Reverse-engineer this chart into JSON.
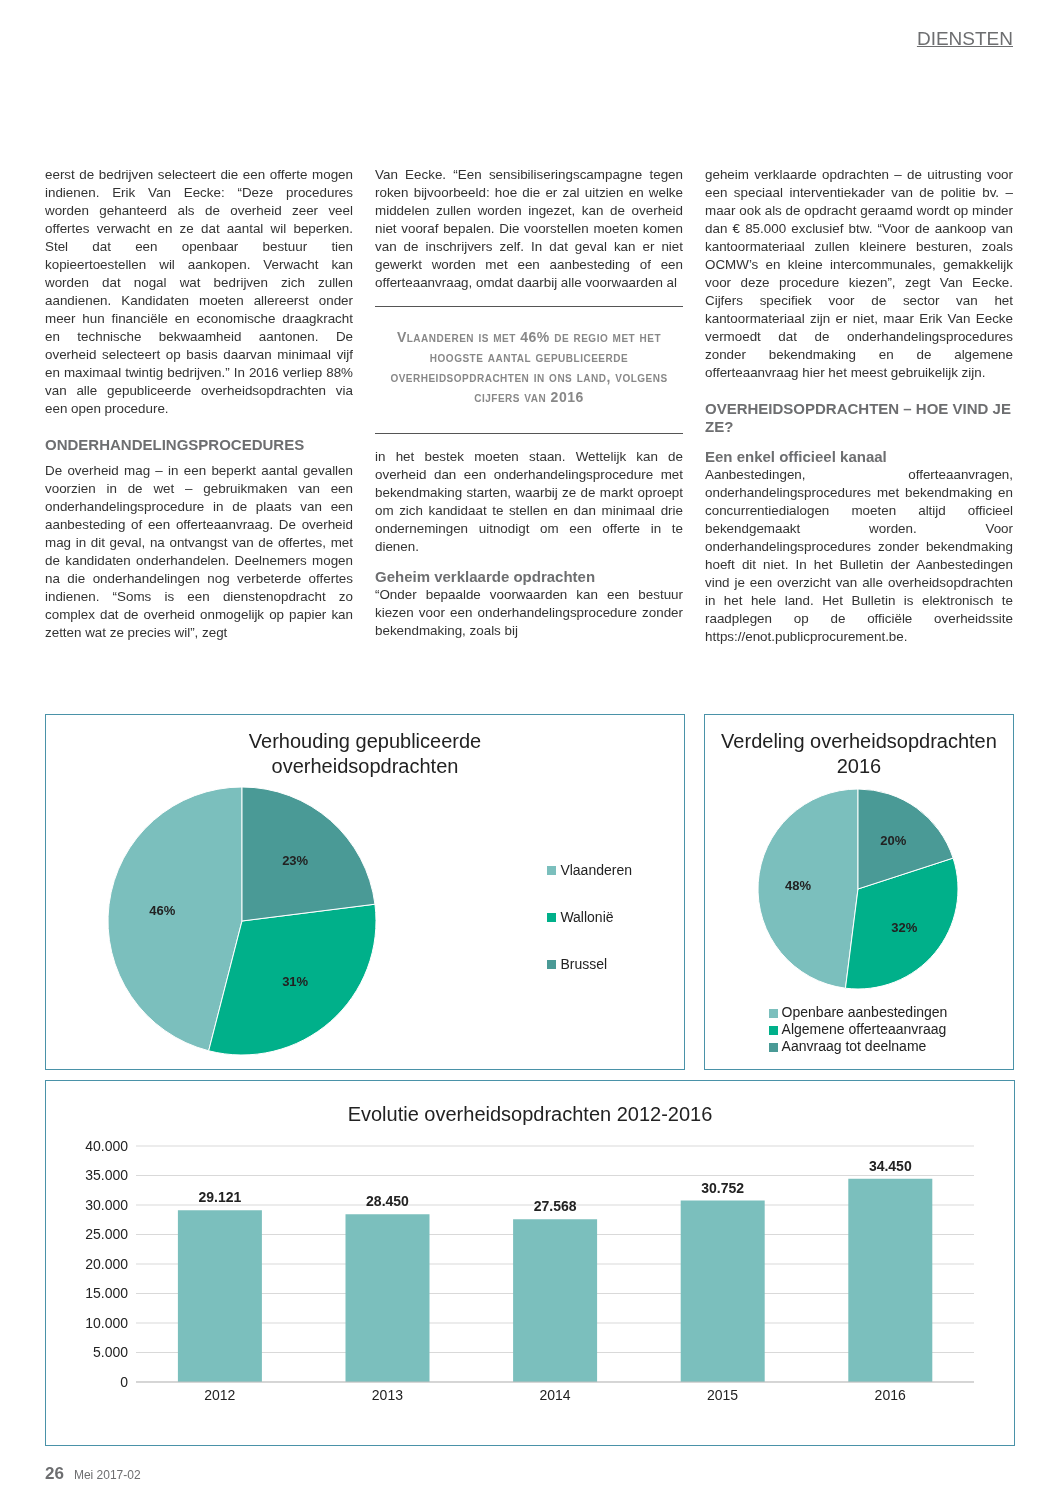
{
  "chart_data": [
    {
      "type": "other",
      "annotations": [
        "DIENSTEN",
        "eerst de bedrijven selecteert die een offerte mogen indienen. Erik Van Eecke: “Deze procedures worden gehanteerd als de overheid zeer veel offertes verwacht en ze dat aantal wil beperken. Stel dat een openbaar bestuur tien kopieertoestellen wil aankopen. Verwacht kan worden dat nogal wat bedrijven zich zullen aandienen. Kandidaten moeten allereerst onder meer hun financiële en economische draagkracht en technische bekwaamheid aantonen. De overheid selecteert op basis daarvan minimaal vijf en maximaal twintig bedrijven.” In 2016 verliep 88% van alle gepubliceerde overheidsopdrachten via een open procedure.",
        "ONDERHANDELINGSPROCEDURES",
        "De overheid mag – in een beperkt aantal gevallen voorzien in de wet – gebruikmaken van een onderhandelingsprocedure in de plaats van een aanbesteding of een offerteaanvraag. De overheid mag in dit geval, na ontvangst van de offertes, met de kandidaten onderhandelen. Deelnemers mogen na die onderhandelingen nog verbeterde offertes indienen. “Soms is een dienstenopdracht zo complex dat de overheid onmogelijk op papier kan zetten wat ze precies wil”, zegt",
        "Van Eecke. “Een sensibiliseringscampagne tegen roken bijvoorbeeld: hoe die er zal uitzien en welke middelen zullen worden ingezet, kan de overheid niet vooraf bepalen. Die voorstellen moeten komen van de inschrijvers zelf. In dat geval kan er niet gewerkt worden met een aanbesteding of een offerteaanvraag, omdat daarbij alle voorwaarden al",
        "Vlaanderen is met 46% de regio met het hoogste aantal gepubliceerde overheidsopdrachten in ons land, volgens cijfers van 2016",
        "in het bestek moeten staan. Wettelijk kan de overheid dan een onderhandelingsprocedure met bekendmaking starten, waarbij ze de markt oproept om zich kandidaat te stellen en dan minimaal drie ondernemingen uitnodigt om een offerte in te dienen.",
        "Geheim verklaarde opdrachten",
        "“Onder bepaalde voorwaarden kan een bestuur kiezen voor een onderhandelingsprocedure zonder bekendmaking, zoals bij",
        "geheim verklaarde opdrachten – de uitrusting voor een speciaal interventiekader van de politie bv. – maar ook als de opdracht geraamd wordt op minder dan € 85.000 exclusief btw. “Voor de aankoop van kantoormateriaal zullen kleinere besturen, zoals OCMW’s en kleine intercommunales, gemakkelijk voor deze procedure kiezen”, zegt Van Eecke. Cijfers specifiek voor de sector van het kantoormateriaal zijn er niet, maar Erik Van Eecke vermoedt dat de onderhandelingsprocedures zonder bekendmaking en de algemene offerteaanvraag hier het meest gebruikelijk zijn.",
        "OVERHEIDSOPDRACHTEN – HOE VIND JE ZE?",
        "Een enkel officieel kanaal",
        "Aanbestedingen, offerteaanvragen, onderhandelingsprocedures met bekendmaking en concurrentiedialogen moeten altijd officieel bekendgemaakt worden. Voor onderhandelingsprocedures zonder bekendmaking hoeft dit niet. In het Bulletin der Aanbestedingen vind je een overzicht van alle overheidsopdrachten in het hele land. Het Bulletin is elektronisch te raadplegen op de officiële overheidssite https://enot.publicprocurement.be.",
        "26",
        "Mei 2017-02"
      ]
    },
    {
      "type": "pie",
      "title": "Verhouding gepubliceerde overheidsopdrachten",
      "categories": [
        "Vlaanderen",
        "Wallonië",
        "Brussel"
      ],
      "values": [
        46,
        31,
        23
      ],
      "colors": [
        "#7bbfbd",
        "#00b08a",
        "#4a9a96"
      ],
      "value_labels": [
        "46%",
        "31%",
        "23%"
      ],
      "legend": "right"
    },
    {
      "type": "pie",
      "title": "Verdeling overheidsopdrachten 2016",
      "categories": [
        "Openbare aanbestedingen",
        "Algemene offerteaanvraag",
        "Aanvraag tot deelname"
      ],
      "values": [
        48,
        32,
        20
      ],
      "colors": [
        "#7bbfbd",
        "#00b08a",
        "#4a9a96"
      ],
      "value_labels": [
        "48%",
        "32%",
        "20%"
      ],
      "legend": "bottom"
    },
    {
      "type": "bar",
      "title": "Evolutie overheidsopdrachten 2012-2016",
      "categories": [
        "2012",
        "2013",
        "2014",
        "2015",
        "2016"
      ],
      "values": [
        29121,
        28450,
        27568,
        30752,
        34450
      ],
      "color": "#7bbfbd",
      "value_labels": [
        "29.121",
        "28.450",
        "27.568",
        "30.752",
        "34.450"
      ],
      "ylim": [
        0,
        40000
      ],
      "yticks": [
        0,
        {
          "value": 5000,
          "label": "5.000"
        },
        {
          "value": 10000,
          "label": "10.000"
        },
        {
          "value": 15000,
          "label": "15.000"
        },
        {
          "value": 20000,
          "label": "20.000"
        },
        {
          "value": 25000,
          "label": "25.000"
        },
        {
          "value": 30000,
          "label": "30.000"
        },
        {
          "value": 35000,
          "label": "35.000"
        },
        {
          "value": 40000,
          "label": "40.000"
        }
      ],
      "grid": "y"
    }
  ]
}
